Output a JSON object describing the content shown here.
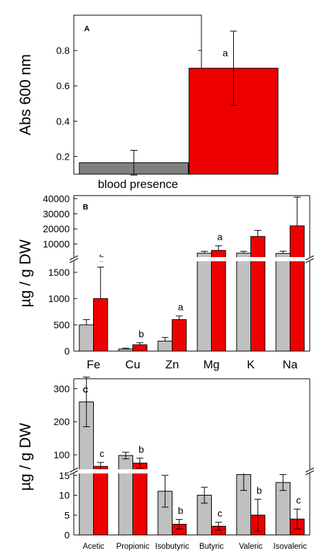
{
  "colors": {
    "control": "#808080",
    "control_light": "#c0c0c0",
    "blood": "#ee0000",
    "frame": "#000000"
  },
  "chart_data": [
    {
      "panel": "A",
      "type": "bar",
      "ylabel": "Abs 600 nm",
      "xlabel": "blood presence",
      "ylim": [
        0.1,
        1.0
      ],
      "yticks": [
        "0.2",
        "0.4",
        "0.6",
        "0.8"
      ],
      "series": [
        {
          "values": [
            0.165
          ],
          "err": [
            0.07
          ],
          "color": "#808080",
          "sig": [
            ""
          ]
        },
        {
          "values": [
            0.7
          ],
          "err": [
            0.21
          ],
          "color": "#ee0000",
          "sig": [
            "a"
          ]
        }
      ]
    },
    {
      "panel": "B",
      "type": "bar",
      "ylabel": "µg / g DW",
      "categories": [
        "Fe",
        "Cu",
        "Zn",
        "Mg",
        "K",
        "Na"
      ],
      "ylim_lower": [
        0,
        1750
      ],
      "ylim_upper": [
        0,
        42000
      ],
      "yticks_lower": [
        "0",
        "500",
        "1000",
        "1500"
      ],
      "yticks_upper": [
        "10000",
        "20000",
        "30000",
        "40000"
      ],
      "series": [
        {
          "values": [
            500,
            40,
            190,
            4000,
            4000,
            3800
          ],
          "err": [
            100,
            15,
            70,
            1200,
            1200,
            1500
          ],
          "color": "#c0c0c0",
          "sig": [
            "",
            "",
            "",
            "",
            "",
            ""
          ]
        },
        {
          "values": [
            1000,
            120,
            600,
            5800,
            15000,
            22000
          ],
          "err": [
            600,
            40,
            70,
            3000,
            4000,
            19000
          ],
          "color": "#ee0000",
          "sig": [
            "b",
            "b",
            "a",
            "a",
            "",
            ""
          ]
        }
      ]
    },
    {
      "panel": "C",
      "type": "bar",
      "ylabel": "µg / g DW",
      "categories": [
        "Acetic",
        "Propionic",
        "Isobutyric",
        "Butyric",
        "Valeric",
        "Isovaleric"
      ],
      "ylim_lower": [
        0,
        16
      ],
      "ylim_upper": [
        50,
        330
      ],
      "yticks_lower": [
        "0",
        "5",
        "10",
        "15"
      ],
      "yticks_upper": [
        "100",
        "200",
        "300"
      ],
      "series": [
        {
          "values": [
            260,
            98,
            11,
            10,
            15.2,
            13.2
          ],
          "err": [
            75,
            10,
            4,
            2,
            4,
            2
          ],
          "color": "#c0c0c0",
          "sig": [
            "",
            "",
            "",
            "",
            "",
            ""
          ]
        },
        {
          "values": [
            65,
            75,
            2.7,
            2.2,
            5,
            4
          ],
          "err": [
            12,
            15,
            1.2,
            1,
            4,
            2.5
          ],
          "color": "#ee0000",
          "sig": [
            "c",
            "b",
            "b",
            "c",
            "b",
            "c"
          ]
        }
      ]
    }
  ]
}
